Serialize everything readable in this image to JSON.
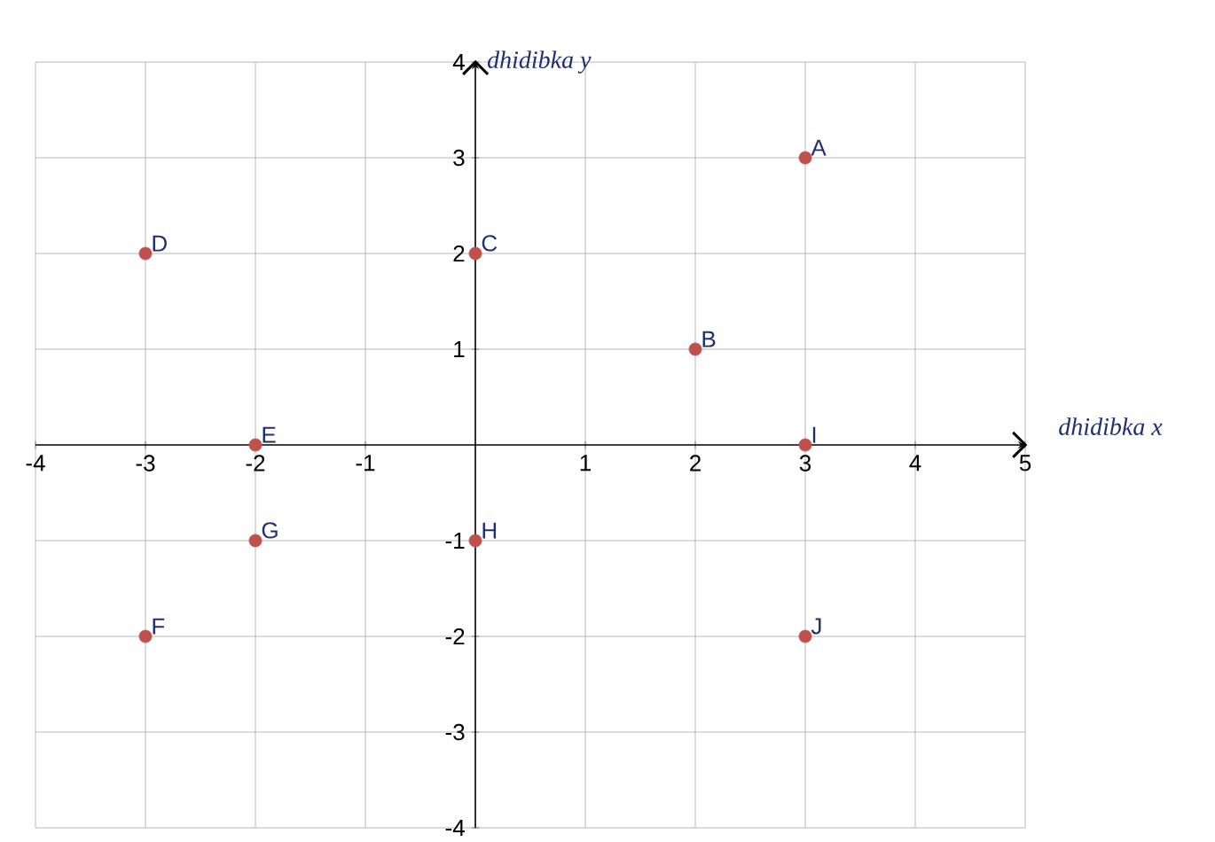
{
  "chart_data": {
    "type": "scatter",
    "xlabel": "*dhidibka x*",
    "ylabel": "*dhidibka y*",
    "x": [
      3,
      2,
      0,
      -3,
      -2,
      -3,
      -2,
      0,
      3,
      3
    ],
    "values": [
      3,
      1,
      2,
      2,
      0,
      -2,
      -1,
      -1,
      0,
      -2
    ],
    "color": "#c0504d",
    "marker": "circle",
    "grid": true,
    "xlim": [
      -4,
      5
    ],
    "ylim": [
      -4,
      4
    ],
    "xticks": [
      -4,
      -3,
      -2,
      -1,
      1,
      2,
      3,
      4,
      5
    ],
    "yticks": [
      -4,
      -3,
      -2,
      -1,
      1,
      2,
      3,
      4
    ],
    "annotations": [
      {
        "text": "A",
        "x": 3,
        "y": 3
      },
      {
        "text": "B",
        "x": 2,
        "y": 1
      },
      {
        "text": "C",
        "x": 0,
        "y": 2
      },
      {
        "text": "D",
        "x": -3,
        "y": 2
      },
      {
        "text": "E",
        "x": -2,
        "y": 0
      },
      {
        "text": "F",
        "x": -3,
        "y": -2
      },
      {
        "text": "G",
        "x": -2,
        "y": -1
      },
      {
        "text": "H",
        "x": 0,
        "y": -1
      },
      {
        "text": "I",
        "x": 3,
        "y": 0
      },
      {
        "text": "J",
        "x": 3,
        "y": -2
      }
    ]
  }
}
